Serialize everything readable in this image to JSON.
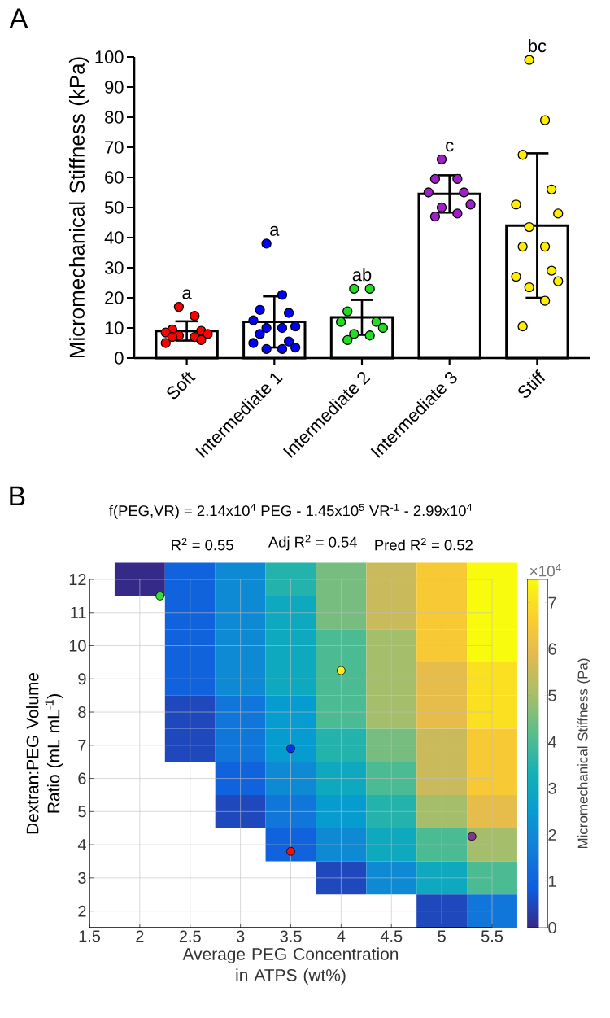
{
  "chart_data": [
    {
      "type": "bar",
      "categories": [
        "Soft",
        "Intermediate 1",
        "Intermediate 2",
        "Intermediate 3",
        "Stiff"
      ],
      "ylabel": "Micromechanical Stiffness (kPa)",
      "ylim": [
        0,
        100
      ],
      "yticks": [
        0,
        10,
        20,
        30,
        40,
        50,
        60,
        70,
        80,
        90,
        100
      ],
      "marker": "circle",
      "annotations": [
        "A",
        "a",
        "a",
        "ab",
        "c",
        "bc"
      ],
      "series": [
        {
          "type": "bar",
          "color": "#ffffff",
          "values": [
            9,
            12,
            13.5,
            54.5,
            44
          ],
          "errors": [
            3.2,
            8.5,
            5.8,
            6.2,
            24
          ]
        },
        {
          "type": "scatter",
          "color": "#ff0000",
          "x": [
            "Soft",
            "Soft",
            "Soft",
            "Soft",
            "Soft",
            "Soft",
            "Soft",
            "Soft",
            "Soft",
            "Soft",
            "Soft"
          ],
          "values": [
            17,
            14,
            9.5,
            9,
            8.5,
            8,
            7.5,
            7,
            7,
            6,
            5
          ]
        },
        {
          "type": "scatter",
          "color": "#0000ff",
          "x": [
            "Intermediate 1",
            "Intermediate 1",
            "Intermediate 1",
            "Intermediate 1",
            "Intermediate 1",
            "Intermediate 1",
            "Intermediate 1",
            "Intermediate 1",
            "Intermediate 1",
            "Intermediate 1",
            "Intermediate 1",
            "Intermediate 1",
            "Intermediate 1",
            "Intermediate 1"
          ],
          "values": [
            38,
            21,
            16,
            15,
            12.5,
            10.5,
            10,
            10,
            8,
            5.5,
            5,
            3.5,
            3,
            3
          ]
        },
        {
          "type": "scatter",
          "color": "#22dd22",
          "x": [
            "Intermediate 2",
            "Intermediate 2",
            "Intermediate 2",
            "Intermediate 2",
            "Intermediate 2",
            "Intermediate 2",
            "Intermediate 2",
            "Intermediate 2",
            "Intermediate 2"
          ],
          "values": [
            23,
            23,
            15.5,
            12,
            12,
            10,
            8,
            7.5,
            6
          ]
        },
        {
          "type": "scatter",
          "color": "#a020c8",
          "x": [
            "Intermediate 3",
            "Intermediate 3",
            "Intermediate 3",
            "Intermediate 3",
            "Intermediate 3",
            "Intermediate 3",
            "Intermediate 3",
            "Intermediate 3",
            "Intermediate 3"
          ],
          "values": [
            66,
            59.5,
            59.5,
            55,
            55,
            51,
            50,
            48,
            47
          ]
        },
        {
          "type": "scatter",
          "color": "#ffee00",
          "x": [
            "Stiff",
            "Stiff",
            "Stiff",
            "Stiff",
            "Stiff",
            "Stiff",
            "Stiff",
            "Stiff",
            "Stiff",
            "Stiff",
            "Stiff",
            "Stiff",
            "Stiff",
            "Stiff",
            "Stiff"
          ],
          "values": [
            99,
            79,
            67.5,
            56,
            51,
            48,
            43.5,
            37,
            37,
            29,
            27,
            25.5,
            23.5,
            19,
            10.5
          ]
        }
      ]
    },
    {
      "type": "heatmap",
      "categories": [
        "1.5",
        "2",
        "2.5",
        "3",
        "3.5",
        "4",
        "4.5",
        "5",
        "5.5"
      ],
      "y_categories": [
        "12",
        "11",
        "10",
        "9",
        "8",
        "7",
        "6",
        "5",
        "4",
        "3",
        "2"
      ],
      "tick_labels": false,
      "clabel": "Micromechanical Stiffness (Pa)",
      "clim": [
        0,
        7.5
      ],
      "cticks": [
        0,
        1,
        2,
        3,
        4,
        5,
        6,
        7
      ],
      "annotations": [
        "×10$^{4}$"
      ],
      "cells": [
        [
          null,
          0,
          1,
          2,
          3.5,
          4.5,
          5.5,
          6.5,
          7.5
        ],
        [
          null,
          null,
          1,
          2,
          3,
          4.5,
          5.5,
          6.5,
          7.5
        ],
        [
          null,
          null,
          1,
          2,
          3,
          4,
          5,
          6.5,
          7.5
        ],
        [
          null,
          null,
          1,
          2,
          3,
          4,
          5,
          6,
          7
        ],
        [
          null,
          null,
          0.5,
          1.5,
          2.5,
          4,
          5,
          6,
          7
        ],
        [
          null,
          null,
          0.5,
          1.5,
          2.5,
          3.5,
          4.5,
          5.5,
          6.5
        ],
        [
          null,
          null,
          null,
          1,
          2,
          3,
          4,
          5.5,
          6.5
        ],
        [
          null,
          null,
          null,
          0.5,
          1.5,
          2.5,
          3.5,
          5,
          6
        ],
        [
          null,
          null,
          null,
          null,
          1,
          2,
          3,
          4,
          5
        ],
        [
          null,
          null,
          null,
          null,
          null,
          0.5,
          2,
          3,
          4
        ],
        [
          null,
          null,
          null,
          null,
          null,
          null,
          null,
          0.5,
          1.5
        ]
      ]
    },
    {
      "type": "scatter",
      "title": "f(PEG,VR) = 2.14x10$^{4}$ PEG - 1.45x10$^{5}$ VR$^{-1}$ - 2.99x10$^{4}$",
      "xlabel": "Average PEG Concentration in ATPS (wt%)",
      "ylabel": "Dextran:PEG Volume Ratio (mL mL$^{-1}$)",
      "xlim": [
        1.5,
        5.5
      ],
      "ylim": [
        1.5,
        12
      ],
      "xticks": [
        1.5,
        2,
        2.5,
        3,
        3.5,
        4,
        4.5,
        5,
        5.5
      ],
      "yticks": [
        2,
        3,
        4,
        5,
        6,
        7,
        8,
        9,
        10,
        11,
        12
      ],
      "grid": true,
      "marker": "circle",
      "annotations": [
        "B",
        "R$^{2}$ = 0.55",
        "Adj R$^{2}$ = 0.54",
        "Pred R$^{2}$ = 0.52"
      ],
      "series": [
        {
          "color": "#33dd33",
          "x": [
            2.2
          ],
          "values": [
            11.5
          ]
        },
        {
          "color": "#0033ee",
          "x": [
            3.5
          ],
          "values": [
            6.9
          ]
        },
        {
          "color": "#ee1111",
          "x": [
            3.5
          ],
          "values": [
            3.8
          ]
        },
        {
          "color": "#ffee22",
          "x": [
            4
          ],
          "values": [
            9.25
          ]
        },
        {
          "color": "#7a3a8a",
          "x": [
            5.3
          ],
          "values": [
            4.25
          ]
        }
      ]
    }
  ]
}
